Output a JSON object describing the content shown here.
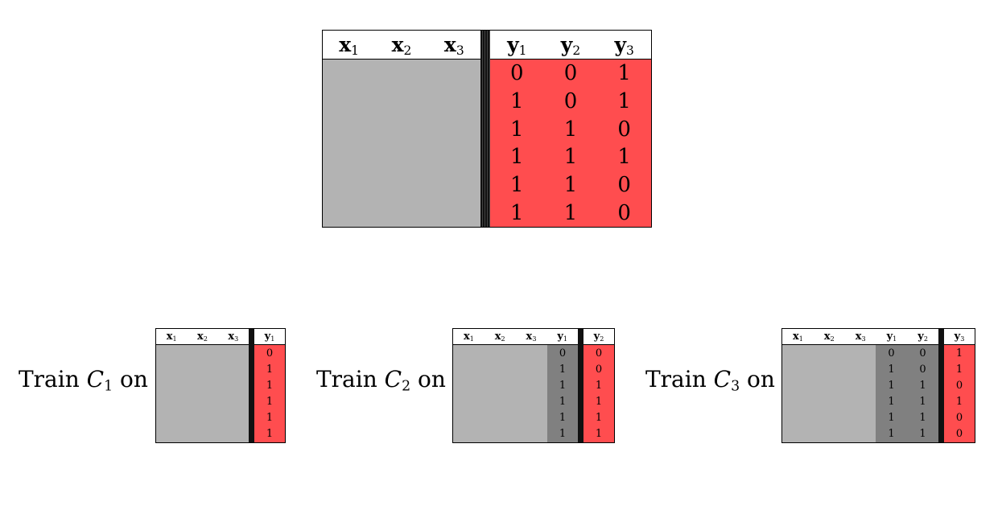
{
  "main_table": {
    "x_headers": [
      {
        "base": "x",
        "sub": "1"
      },
      {
        "base": "x",
        "sub": "2"
      },
      {
        "base": "x",
        "sub": "3"
      }
    ],
    "y_headers": [
      {
        "base": "y",
        "sub": "1"
      },
      {
        "base": "y",
        "sub": "2"
      },
      {
        "base": "y",
        "sub": "3"
      }
    ],
    "rows": [
      [
        "0",
        "0",
        "1"
      ],
      [
        "1",
        "0",
        "1"
      ],
      [
        "1",
        "1",
        "0"
      ],
      [
        "1",
        "1",
        "1"
      ],
      [
        "1",
        "1",
        "0"
      ],
      [
        "1",
        "1",
        "0"
      ]
    ]
  },
  "classifiers": [
    {
      "label_prefix": "Train ",
      "var": "C",
      "sub": "1",
      "label_suffix": " on",
      "headers": [
        {
          "base": "x",
          "sub": "1"
        },
        {
          "base": "x",
          "sub": "2"
        },
        {
          "base": "x",
          "sub": "3"
        }
      ],
      "dark_cols": [],
      "target": {
        "base": "y",
        "sub": "1",
        "values": [
          "0",
          "1",
          "1",
          "1",
          "1",
          "1"
        ]
      }
    },
    {
      "label_prefix": "Train ",
      "var": "C",
      "sub": "2",
      "label_suffix": " on",
      "headers": [
        {
          "base": "x",
          "sub": "1"
        },
        {
          "base": "x",
          "sub": "2"
        },
        {
          "base": "x",
          "sub": "3"
        },
        {
          "base": "y",
          "sub": "1"
        }
      ],
      "dark_cols": [
        [
          "0",
          "1",
          "1",
          "1",
          "1",
          "1"
        ]
      ],
      "target": {
        "base": "y",
        "sub": "2",
        "values": [
          "0",
          "0",
          "1",
          "1",
          "1",
          "1"
        ]
      }
    },
    {
      "label_prefix": "Train ",
      "var": "C",
      "sub": "3",
      "label_suffix": " on",
      "headers": [
        {
          "base": "x",
          "sub": "1"
        },
        {
          "base": "x",
          "sub": "2"
        },
        {
          "base": "x",
          "sub": "3"
        },
        {
          "base": "y",
          "sub": "1"
        },
        {
          "base": "y",
          "sub": "2"
        }
      ],
      "dark_cols": [
        [
          "0",
          "1",
          "1",
          "1",
          "1",
          "1"
        ],
        [
          "0",
          "0",
          "1",
          "1",
          "1",
          "1"
        ]
      ],
      "target": {
        "base": "y",
        "sub": "3",
        "values": [
          "1",
          "1",
          "0",
          "1",
          "0",
          "0"
        ]
      }
    }
  ],
  "colors": {
    "features": "#b3b3b3",
    "previous_labels": "#808080",
    "target": "#ff4d4f",
    "separator": "#111111"
  }
}
